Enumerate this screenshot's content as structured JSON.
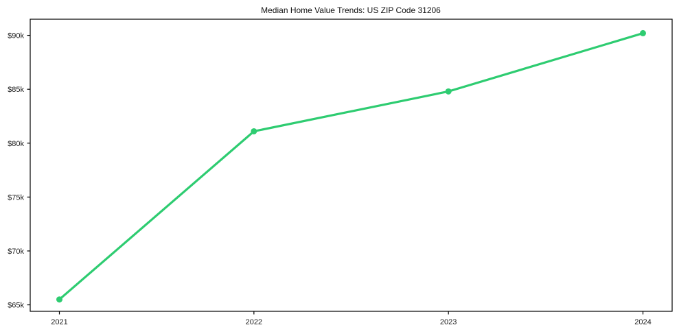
{
  "chart_data": {
    "type": "line",
    "title": "Median Home Value Trends: US ZIP Code 31206",
    "categories": [
      "2021",
      "2022",
      "2023",
      "2024"
    ],
    "series": [
      {
        "name": "Median Home Value",
        "values": [
          65500,
          81100,
          84800,
          90200
        ]
      }
    ],
    "xlabel": "",
    "ylabel": "",
    "ylim": [
      64400,
      91500
    ],
    "yticks": [
      65000,
      70000,
      75000,
      80000,
      85000,
      90000
    ],
    "ytick_labels": [
      "$65k",
      "$70k",
      "$75k",
      "$80k",
      "$85k",
      "$90k"
    ],
    "grid": false,
    "legend": false,
    "line_color": "#2ecc71",
    "marker": "circle",
    "marker_radius": 4.5,
    "line_width": 3.2,
    "axis_color": "#000000",
    "background_color": "#ffffff"
  }
}
